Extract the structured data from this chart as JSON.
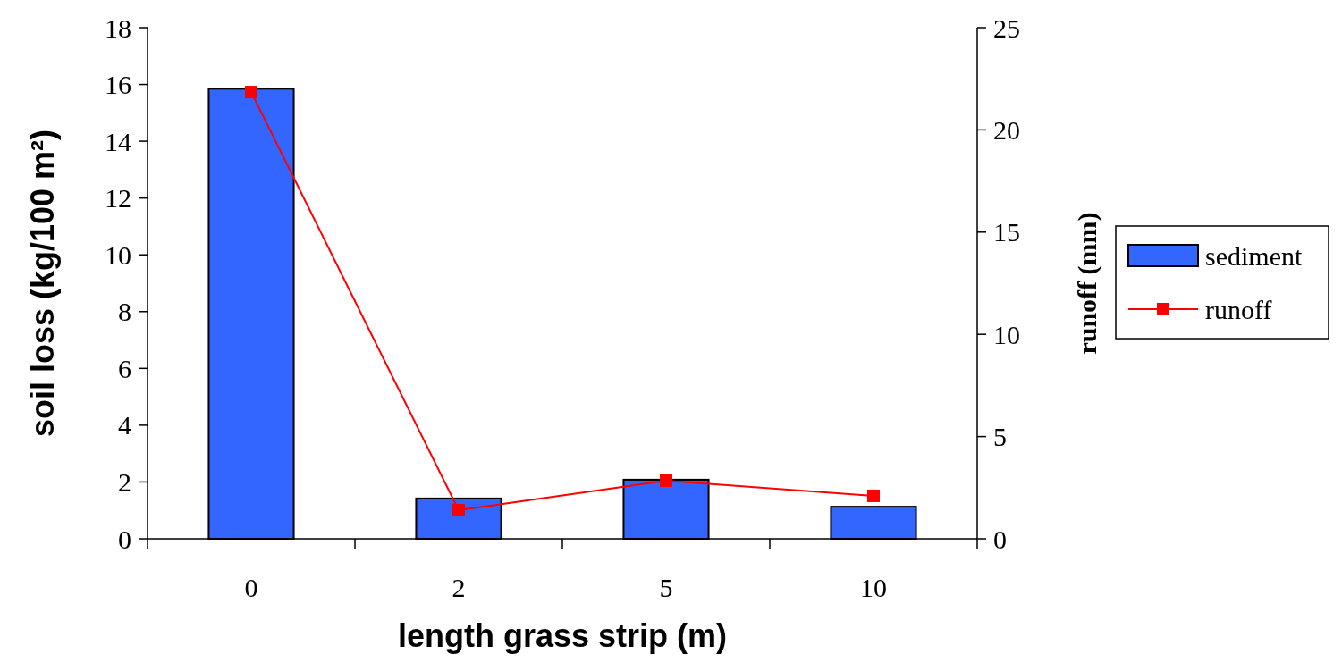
{
  "chart_data": {
    "type": "bar",
    "xlabel": "length grass strip (m)",
    "ylabel": "soil loss (kg/100 m²)",
    "y2label": "runoff (mm)",
    "categories": [
      "0",
      "2",
      "5",
      "10"
    ],
    "series": [
      {
        "name": "sediment",
        "color": "#3366ff",
        "values": [
          15.85,
          1.42,
          2.08,
          1.13
        ]
      },
      {
        "name": "runoff",
        "type": "line",
        "axis": "y2",
        "color": "#ff0000",
        "marker": "square",
        "values": [
          21.85,
          1.4,
          2.84,
          2.1
        ]
      }
    ],
    "ylim": [
      0,
      18
    ],
    "yticks": [
      0,
      2,
      4,
      6,
      8,
      10,
      12,
      14,
      16,
      18
    ],
    "y2lim": [
      0,
      25
    ],
    "y2ticks": [
      0,
      5,
      10,
      15,
      20,
      25
    ],
    "grid": false,
    "legend": "right"
  }
}
